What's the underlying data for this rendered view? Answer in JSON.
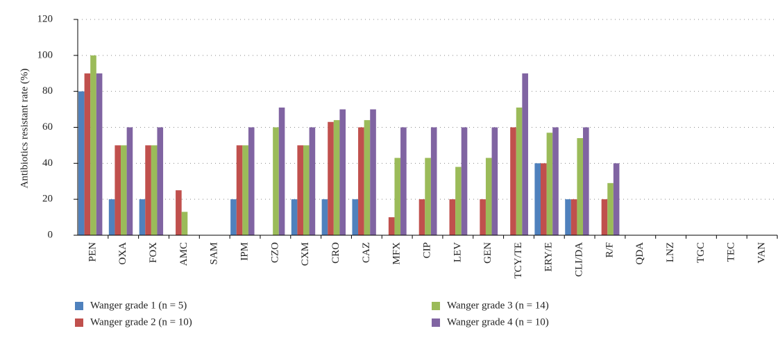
{
  "chart_data": {
    "type": "bar",
    "y_label": "Antibiotics resistant rate (%)",
    "categories": [
      "PEN",
      "OXA",
      "FOX",
      "AMC",
      "SAM",
      "IPM",
      "CZO",
      "CXM",
      "CRO",
      "CAZ",
      "MFX",
      "CIP",
      "LEV",
      "GEN",
      "TCY/TE",
      "ERY/E",
      "CLI/DA",
      "R/F",
      "QDA",
      "LNZ",
      "TGC",
      "TEC",
      "VAN"
    ],
    "series": [
      {
        "name": "Wanger grade 1 (n = 5)",
        "color": "#4f81bd",
        "values": [
          80,
          20,
          20,
          0,
          0,
          20,
          0,
          20,
          20,
          20,
          0,
          0,
          0,
          0,
          0,
          40,
          20,
          0,
          0,
          0,
          0,
          0,
          0
        ]
      },
      {
        "name": "Wanger grade 2 (n = 10)",
        "color": "#c0504d",
        "values": [
          90,
          50,
          50,
          25,
          0,
          50,
          0,
          50,
          63,
          60,
          10,
          20,
          20,
          20,
          60,
          40,
          20,
          20,
          0,
          0,
          0,
          0,
          0
        ]
      },
      {
        "name": "Wanger grade 3 (n = 14)",
        "color": "#9bbb59",
        "values": [
          100,
          50,
          50,
          13,
          0,
          50,
          60,
          50,
          64,
          64,
          43,
          43,
          38,
          43,
          71,
          57,
          54,
          29,
          0,
          0,
          0,
          0,
          0
        ]
      },
      {
        "name": "Wanger grade 4 (n = 10)",
        "color": "#8064a2",
        "values": [
          90,
          60,
          60,
          0,
          0,
          60,
          71,
          60,
          70,
          70,
          60,
          60,
          60,
          60,
          90,
          60,
          60,
          40,
          0,
          0,
          0,
          0,
          0
        ]
      }
    ],
    "ylim": [
      0,
      120
    ],
    "yticks": [
      0,
      20,
      40,
      60,
      80,
      100,
      120
    ],
    "grid": true
  }
}
